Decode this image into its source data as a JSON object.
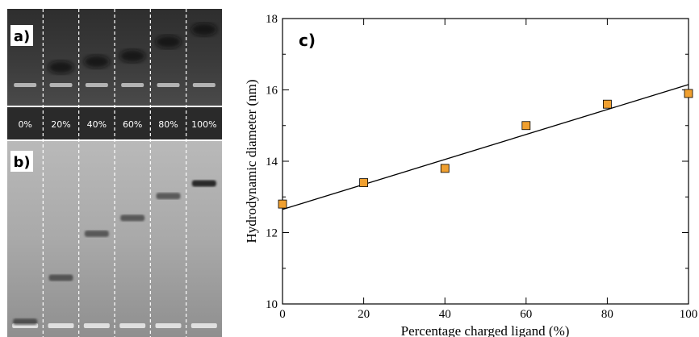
{
  "gel_figure": {
    "panel_a_label": "a)",
    "panel_b_label": "b)",
    "lanes": [
      "0%",
      "20%",
      "40%",
      "60%",
      "80%",
      "100%"
    ],
    "panel_a_band_mobility": [
      null,
      0.25,
      0.35,
      0.45,
      0.7,
      0.92
    ],
    "panel_b_band_mobility": [
      0.02,
      0.3,
      0.58,
      0.68,
      0.82,
      0.9
    ]
  },
  "chart_data": {
    "type": "scatter",
    "panel_label": "c)",
    "xlabel": "Percentage charged ligand (%)",
    "ylabel": "Hydrodynamic diameter (nm)",
    "xlim": [
      0,
      100
    ],
    "ylim": [
      10,
      18
    ],
    "x_ticks": [
      0,
      20,
      40,
      60,
      80,
      100
    ],
    "y_ticks": [
      10,
      12,
      14,
      16,
      18
    ],
    "grid": false,
    "series": [
      {
        "marker": "square",
        "color": "#f0a030",
        "x": [
          0,
          20,
          40,
          60,
          80,
          100
        ],
        "y": [
          12.8,
          13.4,
          13.8,
          15.0,
          15.6,
          15.9
        ]
      }
    ],
    "fit_line": {
      "x": [
        0,
        100
      ],
      "y": [
        12.65,
        16.15
      ],
      "color": "#000000"
    }
  }
}
